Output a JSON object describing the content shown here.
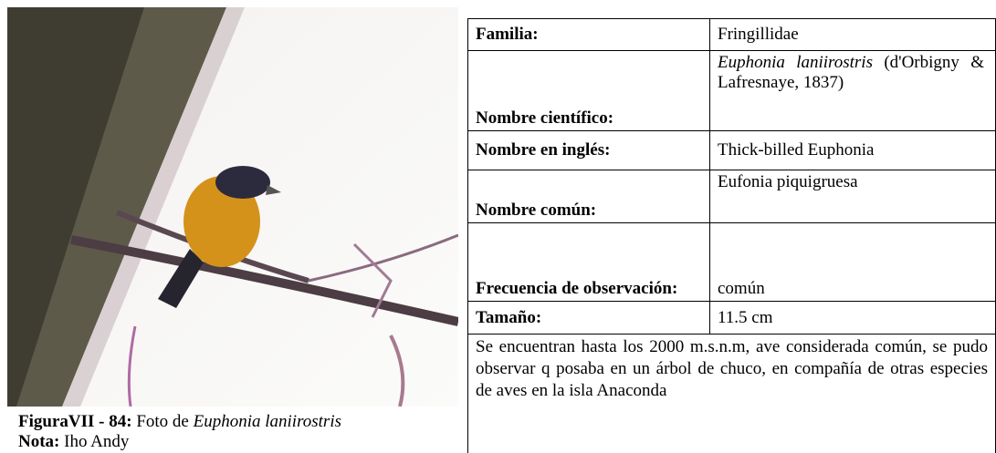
{
  "figure": {
    "label": "FiguraVII - 84:",
    "text": "Foto de",
    "species": "Euphonia laniirostris",
    "note_label": "Nota:",
    "note": "Iho Andy"
  },
  "table": {
    "rows": [
      [
        "Familia:",
        "Fringillidae"
      ],
      [
        "Nombre científico:",
        "Euphonia laniirostris",
        "(d'Orbigny & Lafresnaye, 1837)"
      ],
      [
        "Nombre en inglés:",
        "Thick-billed Euphonia"
      ],
      [
        "Nombre común:",
        "Eufonia piquigruesa"
      ],
      [
        "Frecuencia de observación:",
        "común"
      ],
      [
        "Tamaño:",
        "11.5 cm"
      ]
    ],
    "description": "Se encuentran hasta los 2000 m.s.n.m, ave considerada común, se pudo observar q posaba en un árbol de chuco, en compañía de otras especies de aves en la isla Anaconda"
  }
}
